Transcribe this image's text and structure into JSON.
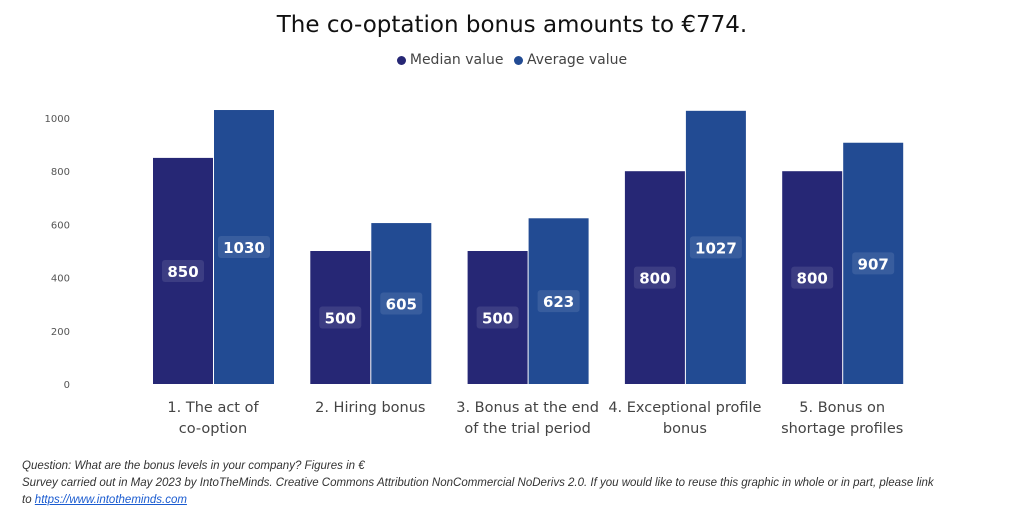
{
  "chart_data": {
    "type": "bar",
    "title": "The co-optation bonus amounts to €774.",
    "categories": [
      [
        "1. The act of",
        "co-option"
      ],
      [
        "2. Hiring bonus"
      ],
      [
        "3. Bonus at the end",
        "of the trial period"
      ],
      [
        "4. Exceptional profile",
        "bonus"
      ],
      [
        "5. Bonus on",
        "shortage profiles"
      ]
    ],
    "series": [
      {
        "name": "Median value",
        "color": "#262775",
        "values": [
          850,
          500,
          500,
          800,
          800
        ]
      },
      {
        "name": "Average value",
        "color": "#224b93",
        "values": [
          1030,
          605,
          623,
          1027,
          907
        ]
      }
    ],
    "yticks": [
      0,
      200,
      400,
      600,
      800,
      1000
    ],
    "ylim": [
      0,
      1000
    ],
    "legend": "top-center",
    "grid": false
  },
  "footer": {
    "line1": "Question: What are the bonus levels in your company? Figures in €",
    "line2": "Survey carried out in May 2023 by IntoTheMinds. Creative Commons Attribution NonCommercial NoDerivs 2.0. If you would like to reuse this graphic in whole or in part, please link",
    "line3_prefix": "to ",
    "link": "https://www.intotheminds.com"
  }
}
